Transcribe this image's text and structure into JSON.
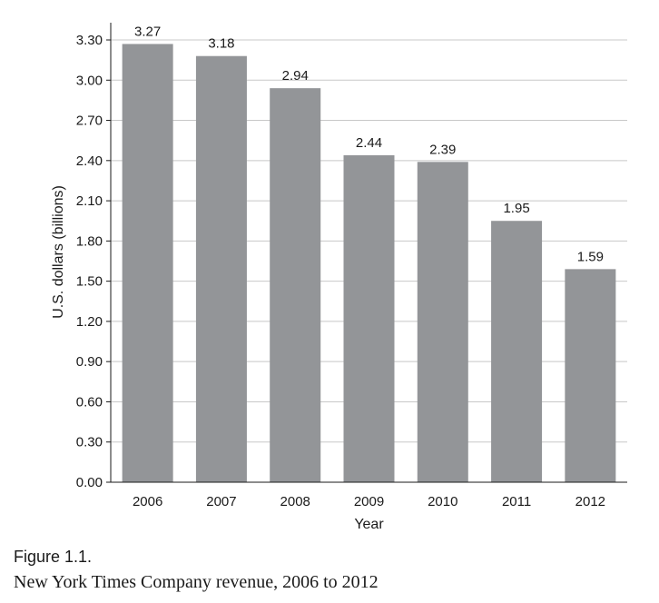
{
  "chart_data": {
    "type": "bar",
    "categories": [
      "2006",
      "2007",
      "2008",
      "2009",
      "2010",
      "2011",
      "2012"
    ],
    "values": [
      3.27,
      3.18,
      2.94,
      2.44,
      2.39,
      1.95,
      1.59
    ],
    "value_labels": [
      "3.27",
      "3.18",
      "2.94",
      "2.44",
      "2.39",
      "1.95",
      "1.59"
    ],
    "xlabel": "Year",
    "ylabel": "U.S. dollars (billions)",
    "ylim": [
      0,
      3.3
    ],
    "yticks": [
      "0.00",
      "0.30",
      "0.60",
      "0.90",
      "1.20",
      "1.50",
      "1.80",
      "2.10",
      "2.40",
      "2.70",
      "3.00",
      "3.30"
    ],
    "grid": true,
    "legend": "none",
    "bar_color": "#939598",
    "grid_color": "#c8c8c8"
  },
  "figure": {
    "label": "Figure 1.1.",
    "title": "New York Times Company revenue, 2006 to 2012"
  }
}
